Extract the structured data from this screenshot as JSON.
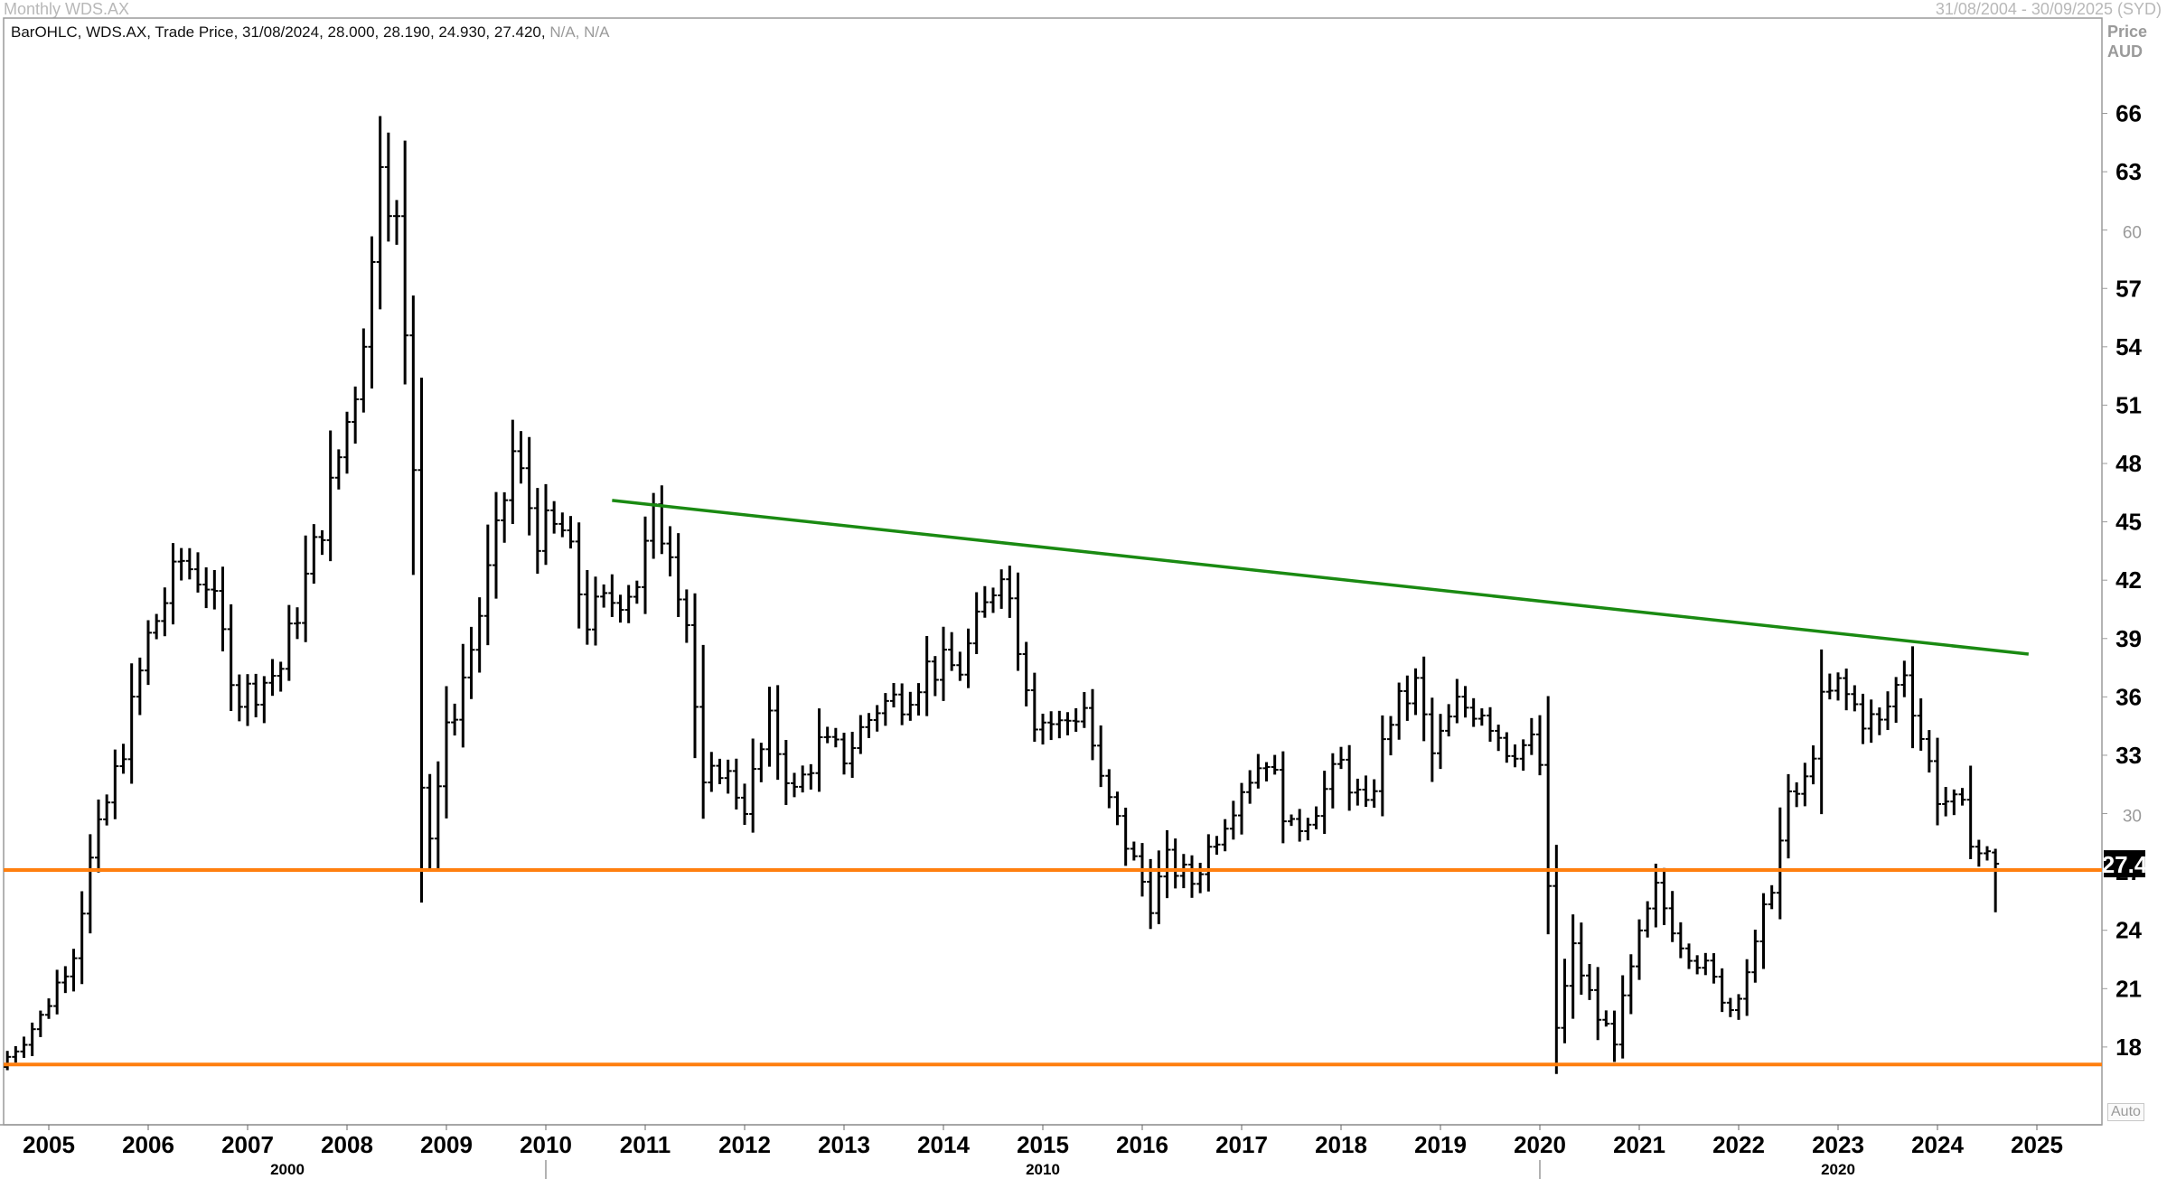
{
  "window": {
    "title": "Monthly WDS.AX",
    "date_range": "31/08/2004 - 30/09/2025 (SYD)"
  },
  "legend": {
    "text": "BarOHLC, WDS.AX, Trade Price, 31/08/2024, 28.000, 28.190, 24.930, 27.420,",
    "na": "N/A, N/A"
  },
  "price_axis": {
    "label_top": "Price",
    "label_unit": "AUD",
    "auto_label": "Auto"
  },
  "chart_data": {
    "type": "ohlc",
    "title": "",
    "y_ticks": [
      18,
      21,
      24,
      27,
      30,
      33,
      36,
      39,
      42,
      45,
      48,
      51,
      54,
      57,
      60,
      63,
      66
    ],
    "y_ticks_minor": [
      30,
      60
    ],
    "ylim": [
      14.0,
      70.9
    ],
    "x_year_labels": [
      "2005",
      "2006",
      "2007",
      "2008",
      "2009",
      "2010",
      "2011",
      "2012",
      "2013",
      "2014",
      "2015",
      "2016",
      "2017",
      "2018",
      "2019",
      "2020",
      "2021",
      "2022",
      "2023",
      "2024",
      "2025"
    ],
    "x_decade_labels": [
      "2000",
      "2010",
      "2020"
    ],
    "last_price_label": "27.4",
    "last_price": 27.42,
    "trendlines": [
      {
        "name": "resistance",
        "color": "#1a8a12",
        "from": [
          "2010-09",
          46.1
        ],
        "to": [
          "2024-12",
          38.2
        ]
      },
      {
        "name": "support-upper",
        "color": "#ff7f0f",
        "value": 27.1
      },
      {
        "name": "support-lower",
        "color": "#ff7f0f",
        "value": 17.1
      }
    ],
    "last_bar": {
      "date": "31/08/2024",
      "open": 28.0,
      "high": 28.19,
      "low": 24.93,
      "close": 27.42
    },
    "start": "2004-08",
    "anchors": [
      [
        "2004-08",
        17.5
      ],
      [
        "2004-12",
        19.5
      ],
      [
        "2005-04",
        23.0
      ],
      [
        "2005-06",
        27.5
      ],
      [
        "2005-10",
        33.5
      ],
      [
        "2006-01",
        39.0
      ],
      [
        "2006-05",
        43.0
      ],
      [
        "2006-08",
        42.0
      ],
      [
        "2006-12",
        36.0
      ],
      [
        "2007-02",
        36.5
      ],
      [
        "2007-05",
        37.5
      ],
      [
        "2007-08",
        42.0
      ],
      [
        "2007-11",
        46.5
      ],
      [
        "2008-02",
        52.0
      ],
      [
        "2008-04",
        58.0
      ],
      [
        "2008-05",
        64.5
      ],
      [
        "2008-07",
        60.0
      ],
      [
        "2008-09",
        48.0
      ],
      [
        "2008-10",
        32.0
      ],
      [
        "2008-11",
        29.0
      ],
      [
        "2009-01",
        34.0
      ],
      [
        "2009-04",
        38.5
      ],
      [
        "2009-07",
        44.0
      ],
      [
        "2009-09",
        48.5
      ],
      [
        "2009-12",
        44.5
      ],
      [
        "2010-03",
        44.5
      ],
      [
        "2010-06",
        40.0
      ],
      [
        "2010-09",
        41.0
      ],
      [
        "2010-12",
        42.0
      ],
      [
        "2011-02",
        45.0
      ],
      [
        "2011-04",
        44.0
      ],
      [
        "2011-06",
        40.0
      ],
      [
        "2011-08",
        31.0
      ],
      [
        "2011-10",
        32.5
      ],
      [
        "2012-01",
        30.5
      ],
      [
        "2012-04",
        34.5
      ],
      [
        "2012-07",
        31.0
      ],
      [
        "2012-10",
        33.5
      ],
      [
        "2013-01",
        33.0
      ],
      [
        "2013-05",
        35.5
      ],
      [
        "2013-08",
        36.0
      ],
      [
        "2013-11",
        37.5
      ],
      [
        "2014-03",
        37.5
      ],
      [
        "2014-06",
        40.5
      ],
      [
        "2014-08",
        43.0
      ],
      [
        "2014-10",
        39.0
      ],
      [
        "2014-12",
        35.0
      ],
      [
        "2015-03",
        34.5
      ],
      [
        "2015-06",
        35.5
      ],
      [
        "2015-08",
        31.5
      ],
      [
        "2015-11",
        28.5
      ],
      [
        "2016-02",
        25.5
      ],
      [
        "2016-04",
        27.5
      ],
      [
        "2016-07",
        26.5
      ],
      [
        "2016-10",
        29.0
      ],
      [
        "2017-01",
        31.5
      ],
      [
        "2017-04",
        33.0
      ],
      [
        "2017-07",
        29.0
      ],
      [
        "2017-10",
        30.5
      ],
      [
        "2018-01",
        32.5
      ],
      [
        "2018-04",
        30.0
      ],
      [
        "2018-07",
        35.0
      ],
      [
        "2018-10",
        36.5
      ],
      [
        "2018-12",
        33.0
      ],
      [
        "2019-03",
        35.5
      ],
      [
        "2019-06",
        35.5
      ],
      [
        "2019-09",
        33.5
      ],
      [
        "2019-12",
        33.5
      ],
      [
        "2020-01",
        32.5
      ],
      [
        "2020-03",
        19.0
      ],
      [
        "2020-05",
        23.0
      ],
      [
        "2020-08",
        19.5
      ],
      [
        "2020-10",
        18.5
      ],
      [
        "2021-01",
        23.5
      ],
      [
        "2021-03",
        26.0
      ],
      [
        "2021-06",
        23.5
      ],
      [
        "2021-09",
        22.0
      ],
      [
        "2021-12",
        20.0
      ],
      [
        "2022-03",
        23.0
      ],
      [
        "2022-05",
        26.5
      ],
      [
        "2022-07",
        30.5
      ],
      [
        "2022-09",
        31.5
      ],
      [
        "2022-11",
        35.5
      ],
      [
        "2023-01",
        36.5
      ],
      [
        "2023-04",
        35.0
      ],
      [
        "2023-06",
        34.5
      ],
      [
        "2023-09",
        37.5
      ],
      [
        "2023-11",
        34.0
      ],
      [
        "2024-01",
        31.0
      ],
      [
        "2024-04",
        30.0
      ],
      [
        "2024-06",
        28.0
      ],
      [
        "2024-08",
        27.42
      ]
    ]
  }
}
